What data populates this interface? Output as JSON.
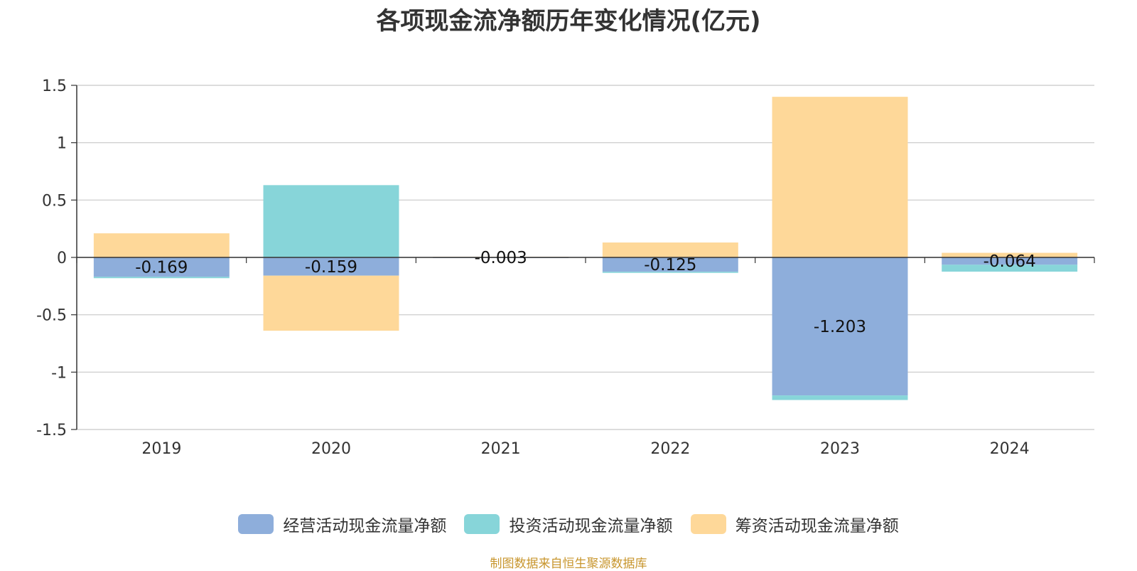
{
  "chart_data": {
    "type": "bar",
    "stacked": true,
    "title": "各项现金流净额历年变化情况(亿元)",
    "categories": [
      "2019",
      "2020",
      "2021",
      "2022",
      "2023",
      "2024"
    ],
    "series": [
      {
        "name": "经营活动现金流量净额",
        "color": "#8eaedb",
        "values": [
          -0.169,
          -0.159,
          -0.003,
          -0.125,
          -1.203,
          -0.064
        ]
      },
      {
        "name": "投资活动现金流量净额",
        "color": "#87d5d9",
        "values": [
          -0.012,
          0.63,
          0.0,
          -0.01,
          -0.04,
          -0.06
        ]
      },
      {
        "name": "筹资活动现金流量净额",
        "color": "#fed899",
        "values": [
          0.21,
          -0.48,
          0.005,
          0.13,
          1.4,
          0.04
        ]
      }
    ],
    "data_labels": [
      "-0.169",
      "-0.159",
      "-0.003",
      "-0.125",
      "-1.203",
      "-0.064"
    ],
    "y_ticks": [
      "1.5",
      "1",
      "0.5",
      "0",
      "-0.5",
      "-1",
      "-1.5"
    ],
    "ylim": [
      -1.5,
      1.5
    ],
    "grid": true,
    "legend_position": "bottom",
    "source": "制图数据来自恒生聚源数据库"
  }
}
